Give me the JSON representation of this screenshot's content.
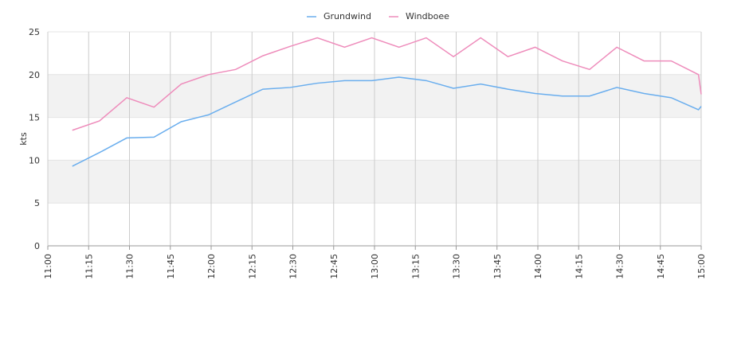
{
  "chart_data": {
    "type": "line",
    "y_label": "kts",
    "x": [
      "11:09",
      "11:19",
      "11:29",
      "11:39",
      "11:49",
      "11:59",
      "12:09",
      "12:19",
      "12:29",
      "12:39",
      "12:49",
      "12:59",
      "13:09",
      "13:19",
      "13:29",
      "13:39",
      "13:49",
      "13:59",
      "14:09",
      "14:19",
      "14:29",
      "14:39",
      "14:49",
      "14:59",
      "15:00"
    ],
    "series": [
      {
        "name": "Grundwind",
        "color": "#6aaeee",
        "values": [
          9.3,
          10.9,
          12.6,
          12.7,
          14.5,
          15.3,
          16.8,
          18.3,
          18.5,
          19.0,
          19.3,
          19.3,
          19.7,
          19.3,
          18.4,
          18.9,
          18.3,
          17.8,
          17.5,
          17.5,
          18.5,
          17.8,
          17.3,
          15.9,
          16.3
        ]
      },
      {
        "name": "Windboee",
        "color": "#ee8cbb",
        "values": [
          13.5,
          14.6,
          17.3,
          16.2,
          18.9,
          20.0,
          20.6,
          22.2,
          23.3,
          24.3,
          23.2,
          24.3,
          23.2,
          24.3,
          22.1,
          24.3,
          22.1,
          23.2,
          21.6,
          20.6,
          23.2,
          21.6,
          21.6,
          20.0,
          17.7
        ]
      }
    ],
    "xlim": [
      "11:00",
      "15:00"
    ],
    "xticks": [
      "11:00",
      "11:15",
      "11:30",
      "11:45",
      "12:00",
      "12:15",
      "12:30",
      "12:45",
      "13:00",
      "13:15",
      "13:30",
      "13:45",
      "14:00",
      "14:15",
      "14:30",
      "14:45",
      "15:00"
    ],
    "ylim": [
      0,
      25
    ],
    "yticks": [
      0,
      5,
      10,
      15,
      20,
      25
    ],
    "grid": true,
    "legend": "top"
  }
}
